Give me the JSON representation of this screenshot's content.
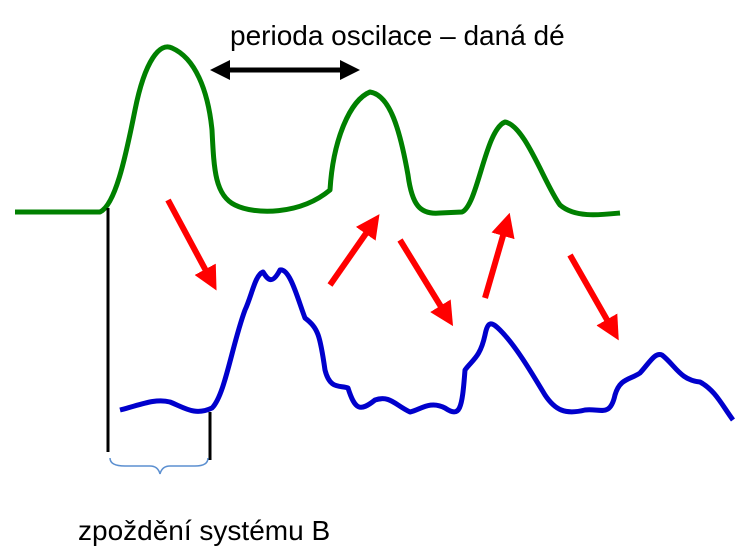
{
  "top_label": "perioda oscilace – daná dé",
  "bottom_label": "zpoždění systému B"
}
